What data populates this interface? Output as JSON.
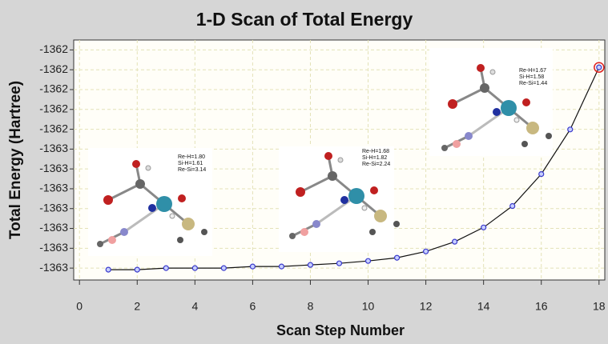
{
  "chart_data": {
    "type": "line",
    "title": "1-D Scan of Total Energy",
    "x_label": "Scan Step Number",
    "y_label": "Total Energy (Hartree)",
    "x": [
      1,
      2,
      3,
      4,
      5,
      6,
      7,
      8,
      9,
      10,
      11,
      12,
      13,
      14,
      15,
      16,
      17,
      18
    ],
    "series": [
      {
        "color": "#3a3acc",
        "values": [
          -1362.5658,
          -1362.5658,
          -1362.565,
          -1362.565,
          -1362.565,
          -1362.5642,
          -1362.5642,
          -1362.5634,
          -1362.5626,
          -1362.5614,
          -1362.5598,
          -1362.5566,
          -1362.5517,
          -1362.5445,
          -1362.5337,
          -1362.5176,
          -1362.4951,
          -1362.4638
        ]
      }
    ],
    "xlim": [
      -0.2,
      18.2
    ],
    "xticks": [
      0,
      2,
      4,
      6,
      8,
      10,
      12,
      14,
      16,
      18
    ],
    "ylim": [
      -1362.571,
      -1362.45
    ],
    "yticks": [
      {
        "value": -1362.565,
        "label": "-1363"
      },
      {
        "value": -1362.555,
        "label": "-1363"
      },
      {
        "value": -1362.545,
        "label": "-1363"
      },
      {
        "value": -1362.535,
        "label": "-1363"
      },
      {
        "value": -1362.525,
        "label": "-1363"
      },
      {
        "value": -1362.515,
        "label": "-1363"
      },
      {
        "value": -1362.505,
        "label": "-1363"
      },
      {
        "value": -1362.495,
        "label": "-1362"
      },
      {
        "value": -1362.485,
        "label": "-1362"
      },
      {
        "value": -1362.475,
        "label": "-1362"
      },
      {
        "value": -1362.465,
        "label": "-1362"
      },
      {
        "value": -1362.455,
        "label": "-1362"
      }
    ],
    "grid": true,
    "highlight_color": "#e02020",
    "annotations": [
      {
        "lines": [
          "Re-H=1.80",
          "Si-H=1.61",
          "Re-Si=3.14"
        ]
      },
      {
        "lines": [
          "Re-H=1.68",
          "Si-H=1.82",
          "Re-Si=2.24"
        ]
      },
      {
        "lines": [
          "Re-H=1.67",
          "Si-H=1.58",
          "Re-Si=1.44"
        ]
      }
    ]
  }
}
